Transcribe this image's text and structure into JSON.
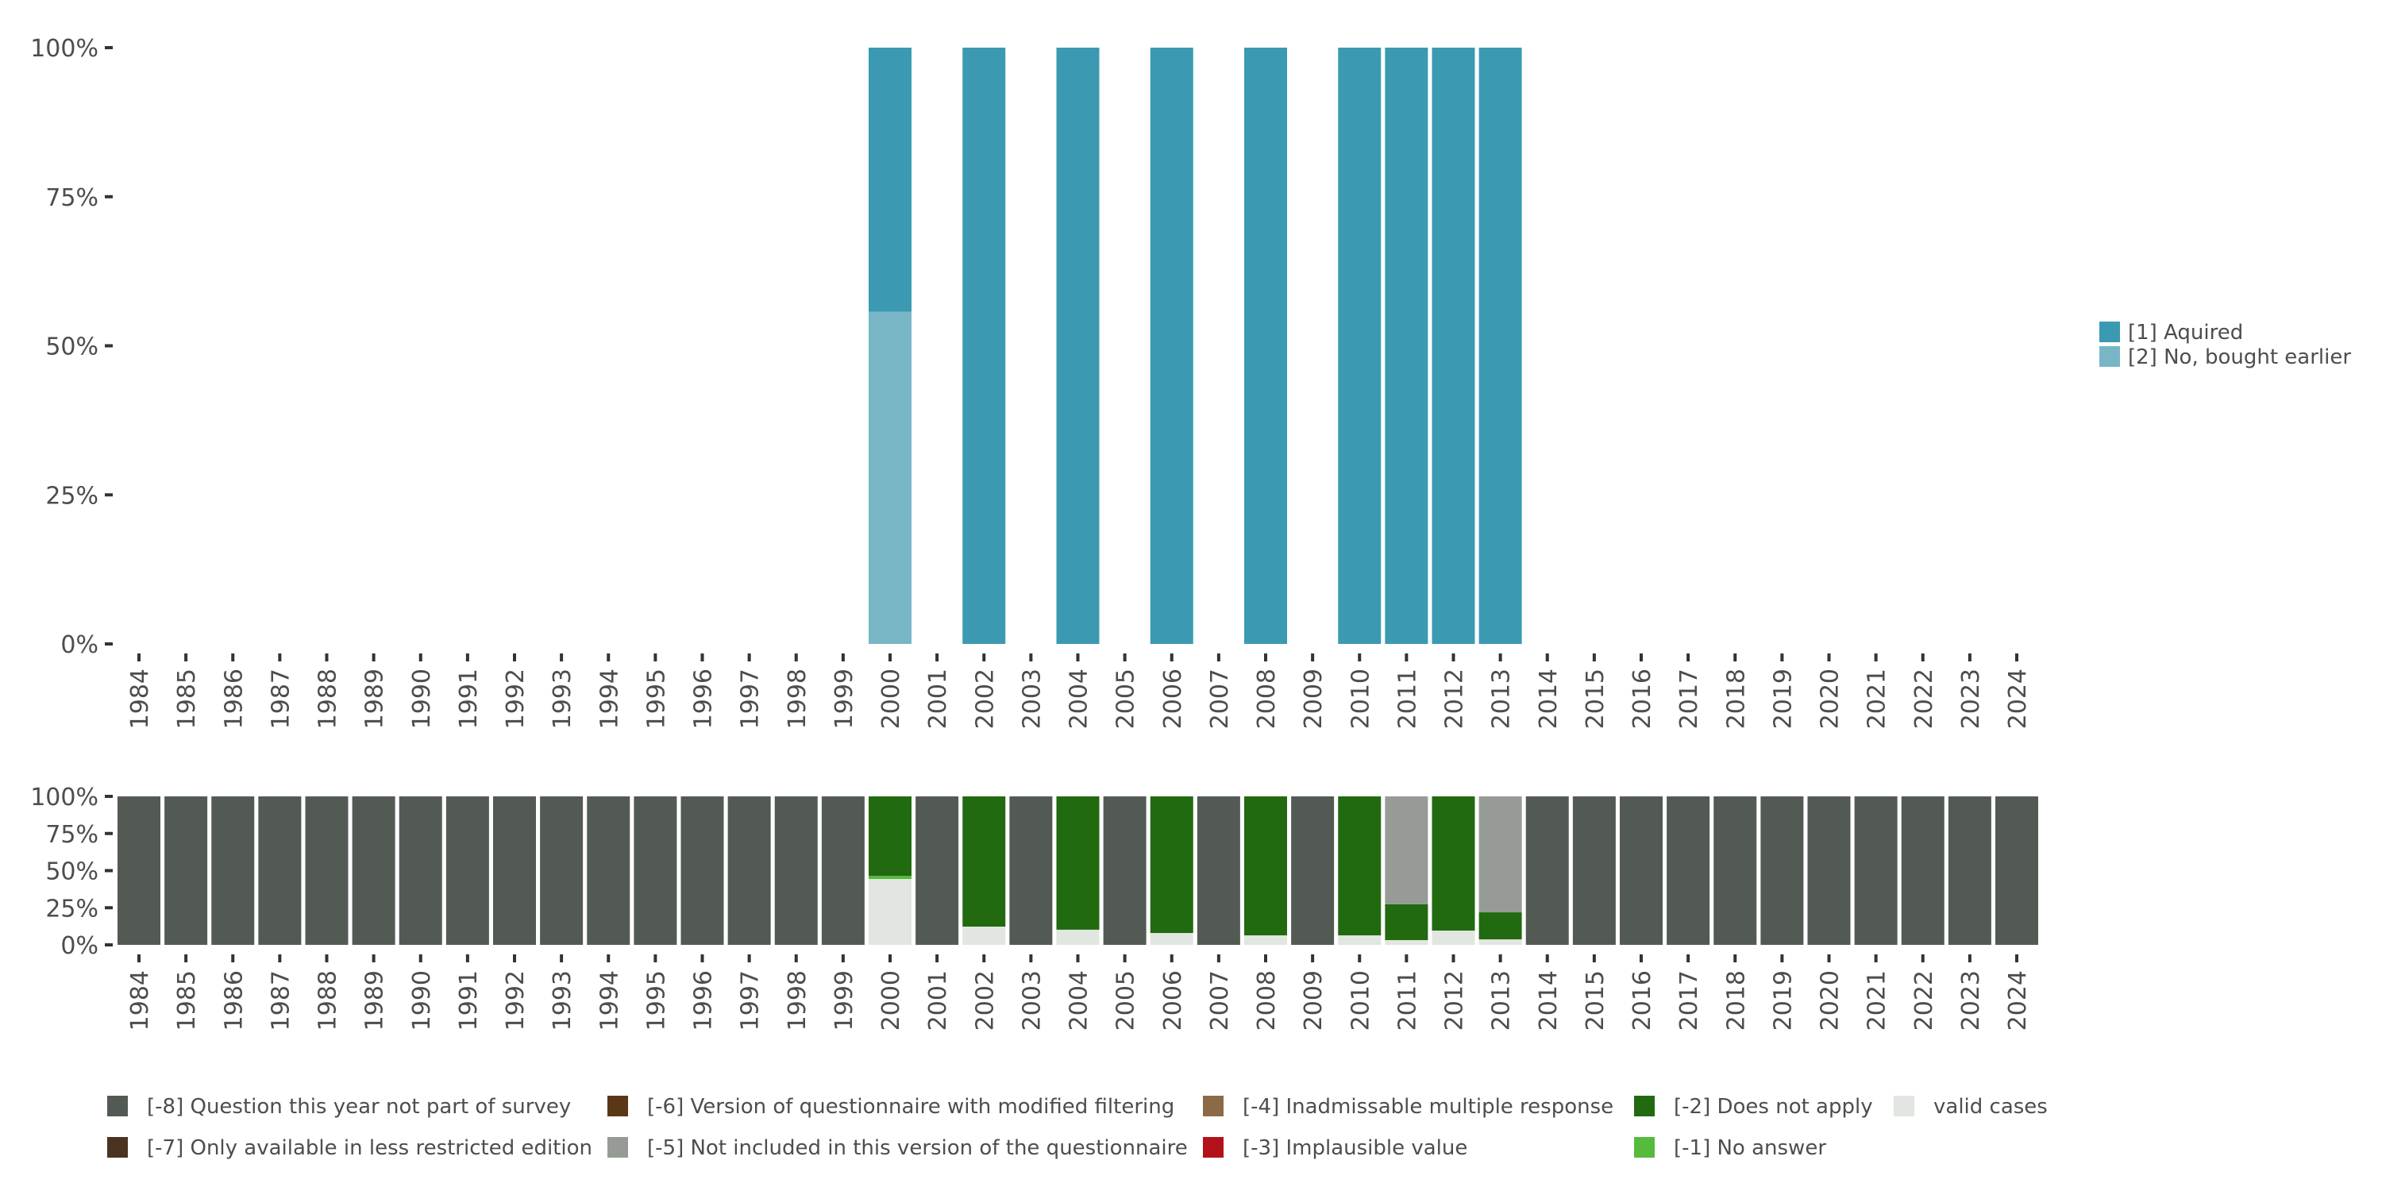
{
  "chart_data": [
    {
      "type": "bar",
      "stacked": true,
      "title": "",
      "xlabel": "",
      "ylabel": "",
      "ylim": [
        0,
        100
      ],
      "yticks": [
        "0%",
        "25%",
        "50%",
        "75%",
        "100%"
      ],
      "categories": [
        "1984",
        "1985",
        "1986",
        "1987",
        "1988",
        "1989",
        "1990",
        "1991",
        "1992",
        "1993",
        "1994",
        "1995",
        "1996",
        "1997",
        "1998",
        "1999",
        "2000",
        "2001",
        "2002",
        "2003",
        "2004",
        "2005",
        "2006",
        "2007",
        "2008",
        "2009",
        "2010",
        "2011",
        "2012",
        "2013",
        "2014",
        "2015",
        "2016",
        "2017",
        "2018",
        "2019",
        "2020",
        "2021",
        "2022",
        "2023",
        "2024"
      ],
      "legend_position": "right",
      "series": [
        {
          "name": "[2] No, bought earlier",
          "color": "#78b6c6",
          "values": {
            "2000": 55.7
          }
        },
        {
          "name": "[1] Aquired",
          "color": "#3b9ab2",
          "values": {
            "2000": 44.3,
            "2002": 100,
            "2004": 100,
            "2006": 100,
            "2008": 100,
            "2010": 100,
            "2011": 100,
            "2012": 100,
            "2013": 100
          }
        }
      ],
      "legend": [
        "[1] Aquired",
        "[2] No, bought earlier"
      ]
    },
    {
      "type": "bar",
      "stacked": true,
      "title": "",
      "xlabel": "",
      "ylabel": "",
      "ylim": [
        0,
        100
      ],
      "yticks": [
        "0%",
        "25%",
        "50%",
        "75%",
        "100%"
      ],
      "categories": [
        "1984",
        "1985",
        "1986",
        "1987",
        "1988",
        "1989",
        "1990",
        "1991",
        "1992",
        "1993",
        "1994",
        "1995",
        "1996",
        "1997",
        "1998",
        "1999",
        "2000",
        "2001",
        "2002",
        "2003",
        "2004",
        "2005",
        "2006",
        "2007",
        "2008",
        "2009",
        "2010",
        "2011",
        "2012",
        "2013",
        "2014",
        "2015",
        "2016",
        "2017",
        "2018",
        "2019",
        "2020",
        "2021",
        "2022",
        "2023",
        "2024"
      ],
      "legend_position": "bottom",
      "stack_order": [
        "valid cases",
        "[-1] No answer",
        "[-2] Does not apply",
        "[-5] Not included in this version of the questionnaire",
        "[-8] Question this year not part of survey"
      ],
      "values_by_year": {
        "2000": {
          "valid cases": 44.4,
          "[-1] No answer": 2.1,
          "[-2] Does not apply": 53.5
        },
        "2002": {
          "valid cases": 12.3,
          "[-2] Does not apply": 87.7
        },
        "2004": {
          "valid cases": 10.2,
          "[-2] Does not apply": 89.8
        },
        "2006": {
          "valid cases": 8.0,
          "[-2] Does not apply": 92.0
        },
        "2008": {
          "valid cases": 6.4,
          "[-2] Does not apply": 93.6
        },
        "2010": {
          "valid cases": 6.4,
          "[-2] Does not apply": 93.6
        },
        "2011": {
          "valid cases": 3.2,
          "[-2] Does not apply": 24.1,
          "[-5] Not included in this version of the questionnaire": 72.7
        },
        "2012": {
          "valid cases": 9.6,
          "[-2] Does not apply": 90.4
        },
        "2013": {
          "valid cases": 3.7,
          "[-2] Does not apply": 18.2,
          "[-5] Not included in this version of the questionnaire": 78.1
        }
      },
      "default_category": "[-8] Question this year not part of survey",
      "legend": [
        {
          "label": "[-8] Question this year not part of survey",
          "color": "#535a54"
        },
        {
          "label": "[-7] Only available in less restricted edition",
          "color": "#4a3321"
        },
        {
          "label": "[-6] Version of questionnaire with modified filtering",
          "color": "#5a3716"
        },
        {
          "label": "[-5] Not included in this version of the questionnaire",
          "color": "#979b95"
        },
        {
          "label": "[-4] Inadmissable multiple response",
          "color": "#8c6a48"
        },
        {
          "label": "[-3] Implausible value",
          "color": "#b3121a"
        },
        {
          "label": "[-2] Does not apply",
          "color": "#216a10"
        },
        {
          "label": "[-1] No answer",
          "color": "#55bb3c"
        },
        {
          "label": "valid cases",
          "color": "#e1e6e0"
        }
      ]
    }
  ]
}
